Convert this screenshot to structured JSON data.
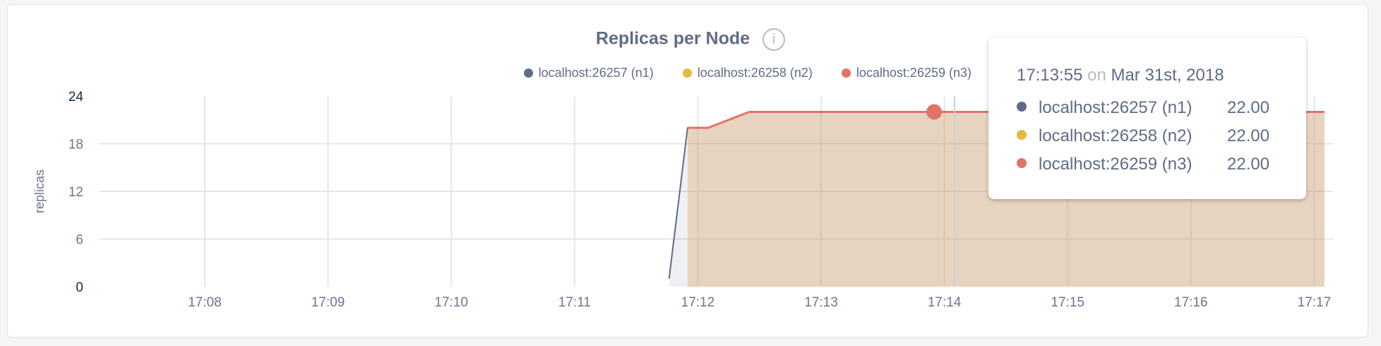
{
  "chart_data": {
    "type": "area",
    "title": "Replicas per Node",
    "ylabel": "replicas",
    "xlabel": "",
    "ylim": [
      0,
      24
    ],
    "yticks": [
      "0",
      "6",
      "12",
      "18",
      "24"
    ],
    "xticks": [
      "17:08",
      "17:09",
      "17:10",
      "17:11",
      "17:12",
      "17:13",
      "17:14",
      "17:15",
      "17:16",
      "17:17"
    ],
    "grid": true,
    "legend_position": "top-right",
    "series": [
      {
        "name": "localhost:26257 (n1)",
        "color": "#5f6c87",
        "points": [
          [
            "17:11:46",
            1
          ],
          [
            "17:11:55",
            20
          ],
          [
            "17:12:05",
            20
          ],
          [
            "17:12:25",
            22
          ],
          [
            "17:17:05",
            22
          ]
        ]
      },
      {
        "name": "localhost:26258 (n2)",
        "color": "#e8b93f",
        "points": [
          [
            "17:11:55",
            20
          ],
          [
            "17:12:05",
            20
          ],
          [
            "17:12:25",
            22
          ],
          [
            "17:17:05",
            22
          ]
        ]
      },
      {
        "name": "localhost:26259 (n3)",
        "color": "#e0736a",
        "points": [
          [
            "17:11:55",
            20
          ],
          [
            "17:12:05",
            20
          ],
          [
            "17:12:25",
            22
          ],
          [
            "17:17:05",
            22
          ]
        ]
      }
    ],
    "hover": {
      "time": "17:13:55",
      "on": "on",
      "date": "Mar 31st, 2018",
      "values": [
        "22.00",
        "22.00",
        "22.00"
      ]
    }
  },
  "info_icon": "info-icon"
}
